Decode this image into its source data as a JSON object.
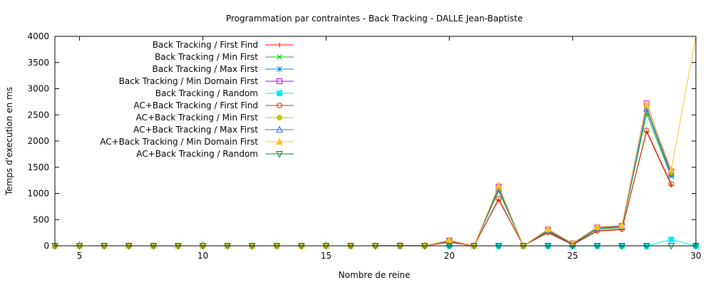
{
  "chart_data": {
    "type": "line",
    "title": "Programmation par contraintes - Back Tracking - DALLE Jean-Baptiste",
    "xlabel": "Nombre de reine",
    "ylabel": "Temps d'execution en ms",
    "xlim": [
      4,
      30
    ],
    "ylim": [
      0,
      4000
    ],
    "x_ticks": [
      5,
      10,
      15,
      20,
      25,
      30
    ],
    "y_ticks": [
      0,
      500,
      1000,
      1500,
      2000,
      2500,
      3000,
      3500,
      4000
    ],
    "legend_position": "top-left",
    "x": [
      4,
      5,
      6,
      7,
      8,
      9,
      10,
      11,
      12,
      13,
      14,
      15,
      16,
      17,
      18,
      19,
      20,
      21,
      22,
      23,
      24,
      25,
      26,
      27,
      28,
      29,
      30
    ],
    "series": [
      {
        "name": "Back Tracking / First Find",
        "color": "#ff0000",
        "marker": "plus",
        "values": [
          0,
          0,
          0,
          0,
          0,
          0,
          0,
          0,
          0,
          0,
          0,
          0,
          0,
          0,
          3,
          0,
          70,
          0,
          880,
          0,
          250,
          20,
          280,
          310,
          2180,
          1160,
          null
        ]
      },
      {
        "name": "Back Tracking / Min First",
        "color": "#00c000",
        "marker": "cross",
        "values": [
          0,
          0,
          0,
          0,
          0,
          0,
          0,
          0,
          0,
          0,
          0,
          0,
          0,
          0,
          3,
          0,
          90,
          0,
          1050,
          0,
          280,
          30,
          320,
          350,
          2520,
          1320,
          null
        ]
      },
      {
        "name": "Back Tracking / Max First",
        "color": "#0080ff",
        "marker": "star",
        "values": [
          0,
          0,
          0,
          0,
          0,
          0,
          0,
          0,
          0,
          0,
          0,
          0,
          0,
          0,
          3,
          0,
          95,
          0,
          1080,
          0,
          290,
          35,
          330,
          360,
          2600,
          1350,
          null
        ]
      },
      {
        "name": "Back Tracking / Min Domain First",
        "color": "#c000ff",
        "marker": "square-open",
        "values": [
          0,
          0,
          0,
          0,
          0,
          0,
          0,
          0,
          0,
          0,
          0,
          0,
          0,
          0,
          3,
          0,
          100,
          0,
          1130,
          0,
          310,
          45,
          350,
          380,
          2720,
          1420,
          null
        ]
      },
      {
        "name": "Back Tracking / Random",
        "color": "#00eeee",
        "marker": "square-filled",
        "values": [
          0,
          0,
          0,
          0,
          0,
          0,
          0,
          0,
          0,
          0,
          0,
          0,
          0,
          0,
          0,
          0,
          0,
          0,
          0,
          0,
          0,
          0,
          0,
          0,
          0,
          120,
          0
        ]
      },
      {
        "name": "AC+Back Tracking / First Find",
        "color": "#c04000",
        "marker": "circle-open",
        "values": [
          0,
          0,
          0,
          0,
          0,
          0,
          0,
          0,
          0,
          0,
          0,
          0,
          0,
          0,
          3,
          0,
          80,
          0,
          900,
          0,
          260,
          25,
          290,
          320,
          2200,
          1180,
          null
        ]
      },
      {
        "name": "AC+Back Tracking / Min First",
        "color": "#c8c800",
        "marker": "circle-filled",
        "values": [
          0,
          0,
          0,
          0,
          0,
          0,
          0,
          0,
          0,
          0,
          0,
          0,
          0,
          0,
          3,
          0,
          95,
          0,
          1100,
          0,
          300,
          40,
          340,
          370,
          2650,
          1400,
          null
        ]
      },
      {
        "name": "AC+Back Tracking / Max First",
        "color": "#4169e1",
        "marker": "triangle-open",
        "values": [
          0,
          0,
          0,
          0,
          0,
          0,
          0,
          0,
          0,
          0,
          0,
          0,
          0,
          0,
          3,
          0,
          95,
          0,
          1090,
          0,
          295,
          38,
          335,
          365,
          2620,
          1380,
          null
        ]
      },
      {
        "name": "AC+Back Tracking / Min Domain First",
        "color": "#ffc020",
        "marker": "triangle-filled",
        "values": [
          0,
          0,
          0,
          0,
          0,
          0,
          0,
          0,
          0,
          0,
          0,
          0,
          0,
          0,
          3,
          0,
          110,
          0,
          1150,
          0,
          320,
          50,
          360,
          390,
          2700,
          1450,
          4000
        ]
      },
      {
        "name": "AC+Back Tracking / Random",
        "color": "#008040",
        "marker": "triangle-down-open",
        "values": [
          0,
          0,
          0,
          0,
          0,
          0,
          0,
          0,
          0,
          0,
          0,
          0,
          0,
          0,
          0,
          0,
          0,
          0,
          0,
          0,
          0,
          0,
          0,
          0,
          0,
          0,
          0
        ]
      }
    ]
  }
}
